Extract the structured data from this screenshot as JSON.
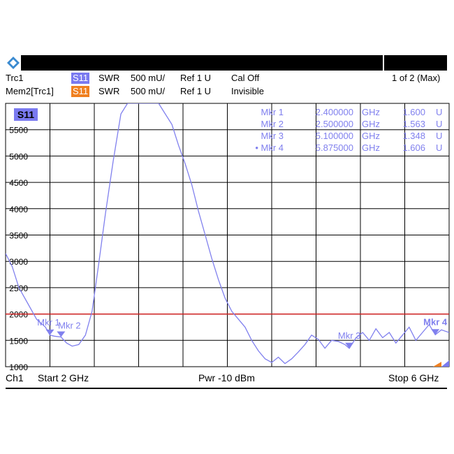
{
  "header": {
    "trace1_name": "Trc1",
    "trace1_param": "S11",
    "trace1_format": "SWR",
    "trace1_scale": "500 mU/",
    "trace1_ref": "Ref 1 U",
    "trace1_cal": "Cal Off",
    "trace2_name": "Mem2[Trc1]",
    "trace2_param": "S11",
    "trace2_format": "SWR",
    "trace2_scale": "500 mU/",
    "trace2_ref": "Ref 1 U",
    "trace2_state": "Invisible",
    "page_indicator": "1 of 2 (Max)"
  },
  "footer": {
    "channel": "Ch1",
    "start": "Start  2 GHz",
    "power": "Pwr  -10 dBm",
    "stop": "Stop  6 GHz"
  },
  "colors": {
    "trace": "#8080ee",
    "param_badge_trc": "#7a7af0",
    "param_badge_mem": "#f08020",
    "limit_line": "#d02020",
    "grid": "#000000"
  },
  "chart_data": {
    "type": "line",
    "trace_label": "S11",
    "xlim": [
      2,
      6
    ],
    "x_unit": "GHz",
    "ylim": [
      1000,
      6000
    ],
    "y_ticks": [
      1000,
      1500,
      2000,
      2500,
      3000,
      3500,
      4000,
      4500,
      5000,
      5500
    ],
    "y_tick_labels": [
      "1000",
      "1500",
      "2000",
      "2500",
      "3000",
      "3500",
      "4000",
      "4500",
      "5000",
      "5500"
    ],
    "grid": true,
    "limit_line": 2000,
    "series": [
      {
        "x": [
          2.0,
          2.06,
          2.12,
          2.2,
          2.28,
          2.36,
          2.4,
          2.44,
          2.5,
          2.55,
          2.6,
          2.66,
          2.72,
          2.78,
          2.84,
          2.9,
          2.97,
          3.04,
          3.1,
          3.16,
          3.22,
          3.27,
          3.32,
          3.38,
          3.44,
          3.5,
          3.56,
          3.62,
          3.68,
          3.74,
          3.8,
          3.86,
          3.92,
          3.98,
          4.04,
          4.1,
          4.16,
          4.22,
          4.28,
          4.34,
          4.4,
          4.46,
          4.52,
          4.58,
          4.64,
          4.7,
          4.76,
          4.82,
          4.88,
          4.94,
          5.0,
          5.06,
          5.1,
          5.16,
          5.22,
          5.28,
          5.34,
          5.4,
          5.46,
          5.52,
          5.58,
          5.64,
          5.7,
          5.76,
          5.82,
          5.875,
          5.93,
          6.0
        ],
        "y": [
          3150,
          2900,
          2500,
          2200,
          1900,
          1750,
          1600,
          1580,
          1563,
          1450,
          1390,
          1420,
          1600,
          2050,
          2950,
          3900,
          4900,
          5800,
          6000,
          6000,
          6000,
          6000,
          6000,
          6000,
          5800,
          5600,
          5200,
          4850,
          4450,
          3950,
          3500,
          3050,
          2650,
          2300,
          2050,
          1900,
          1750,
          1500,
          1300,
          1150,
          1080,
          1180,
          1060,
          1150,
          1280,
          1420,
          1600,
          1520,
          1350,
          1500,
          1480,
          1420,
          1348,
          1550,
          1650,
          1500,
          1720,
          1550,
          1650,
          1450,
          1600,
          1750,
          1500,
          1650,
          1800,
          1606,
          1700,
          1650
        ]
      }
    ],
    "markers": [
      {
        "label": "Mkr 1",
        "short": "Mkr 1",
        "x": 2.4,
        "y": 1600,
        "freq": "2.400000",
        "freq_unit": "GHz",
        "value": "1.600",
        "value_unit": "U",
        "active": false
      },
      {
        "label": "Mkr 2",
        "short": "Mkr 2",
        "x": 2.5,
        "y": 1563,
        "freq": "2.500000",
        "freq_unit": "GHz",
        "value": "1.563",
        "value_unit": "U",
        "active": false
      },
      {
        "label": "Mkr 3",
        "short": "Mkr 3",
        "x": 5.1,
        "y": 1348,
        "freq": "5.100000",
        "freq_unit": "GHz",
        "value": "1.348",
        "value_unit": "U",
        "active": false
      },
      {
        "label": "Mkr 4",
        "short": "Mkr 4",
        "x": 5.875,
        "y": 1606,
        "freq": "5.875000",
        "freq_unit": "GHz",
        "value": "1.606",
        "value_unit": "U",
        "active": true
      }
    ]
  }
}
